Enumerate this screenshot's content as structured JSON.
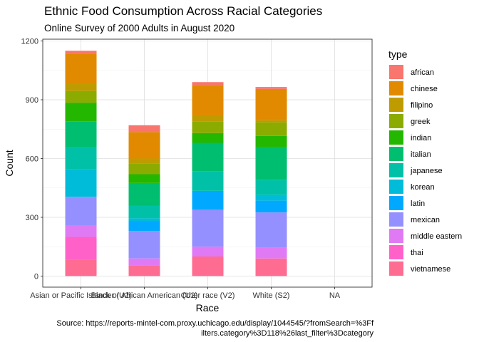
{
  "chart_data": {
    "type": "bar",
    "stacked": true,
    "title": "Ethnic Food Consumption Across Racial Categories",
    "subtitle": "Online Survey of 2000 Adults in August 2020",
    "xlabel": "Race",
    "ylabel": "Count",
    "ylim": [
      0,
      1200
    ],
    "yticks": [
      0,
      300,
      600,
      900,
      1200
    ],
    "y_tick_labels": [
      "0",
      "300",
      "600",
      "900",
      "1200"
    ],
    "categories": [
      "Asian or Pacific Islander (U2)",
      "Black or African American (U2)",
      "Other race (V2)",
      "White (S2)",
      "NA"
    ],
    "legend_title": "type",
    "legend_position": "right",
    "grid": true,
    "caption": [
      "Source: https://reports-mintel-com.proxy.uchicago.edu/display/1044545/?fromSearch=%3Ff",
      "ilters.category%3D118%26last_filter%3Dcategory"
    ],
    "series": [
      {
        "name": "vietnamese",
        "color": "#FF6C91",
        "values": [
          85,
          55,
          100,
          90,
          null
        ]
      },
      {
        "name": "thai",
        "color": "#FF61C9",
        "values": [
          115,
          0,
          0,
          0,
          null
        ]
      },
      {
        "name": "middle eastern",
        "color": "#E07AF4",
        "values": [
          60,
          35,
          50,
          55,
          null
        ]
      },
      {
        "name": "mexican",
        "color": "#9590FF",
        "values": [
          145,
          140,
          190,
          180,
          null
        ]
      },
      {
        "name": "latin",
        "color": "#00A9FF",
        "values": [
          0,
          50,
          95,
          60,
          null
        ]
      },
      {
        "name": "korean",
        "color": "#00BCD8",
        "values": [
          140,
          15,
          0,
          30,
          null
        ]
      },
      {
        "name": "japanese",
        "color": "#00C1A7",
        "values": [
          115,
          65,
          100,
          75,
          null
        ]
      },
      {
        "name": "italian",
        "color": "#00BE70",
        "values": [
          130,
          115,
          145,
          170,
          null
        ]
      },
      {
        "name": "indian",
        "color": "#24B700",
        "values": [
          95,
          45,
          50,
          55,
          null
        ]
      },
      {
        "name": "greek",
        "color": "#8CAB00",
        "values": [
          60,
          55,
          60,
          70,
          null
        ]
      },
      {
        "name": "filipino",
        "color": "#BE9C00",
        "values": [
          35,
          25,
          30,
          10,
          null
        ]
      },
      {
        "name": "chinese",
        "color": "#E18A00",
        "values": [
          155,
          135,
          155,
          160,
          null
        ]
      },
      {
        "name": "african",
        "color": "#F8766D",
        "values": [
          15,
          35,
          15,
          10,
          null
        ]
      }
    ],
    "legend_order": [
      "african",
      "chinese",
      "filipino",
      "greek",
      "indian",
      "italian",
      "japanese",
      "korean",
      "latin",
      "mexican",
      "middle eastern",
      "thai",
      "vietnamese"
    ]
  }
}
